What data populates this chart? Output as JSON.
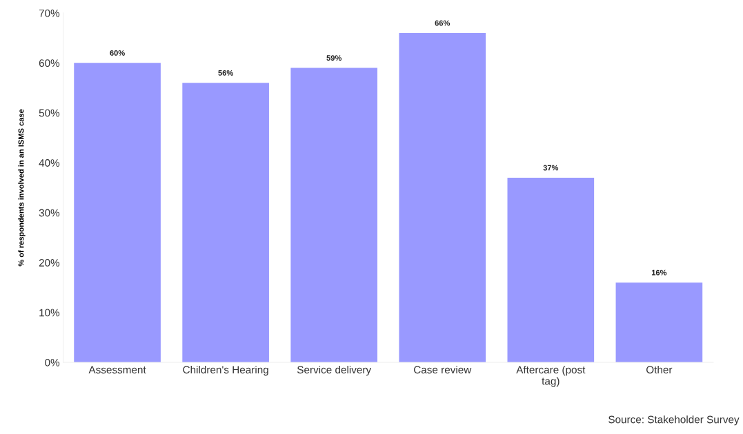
{
  "chart_data": {
    "type": "bar",
    "ylabel": "% of respondents involved in an ISMS case",
    "categories": [
      "Assessment",
      "Children's Hearing",
      "Service delivery",
      "Case review",
      "Aftercare (post\ntag)",
      "Other"
    ],
    "values": [
      60,
      56,
      59,
      66,
      37,
      16
    ],
    "color": "#9999ff",
    "value_labels": [
      "60%",
      "56%",
      "59%",
      "66%",
      "37%",
      "16%"
    ],
    "ylim": [
      0,
      70
    ],
    "yticks": [
      {
        "value": 0,
        "label": "0%"
      },
      {
        "value": 10,
        "label": "10%"
      },
      {
        "value": 20,
        "label": "20%"
      },
      {
        "value": 30,
        "label": "30%"
      },
      {
        "value": 40,
        "label": "40%"
      },
      {
        "value": 50,
        "label": "50%"
      },
      {
        "value": 60,
        "label": "60%"
      },
      {
        "value": 70,
        "label": "70%"
      }
    ],
    "grid": false,
    "legend": false,
    "annotations": [
      "Source: Stakeholder Survey"
    ]
  }
}
